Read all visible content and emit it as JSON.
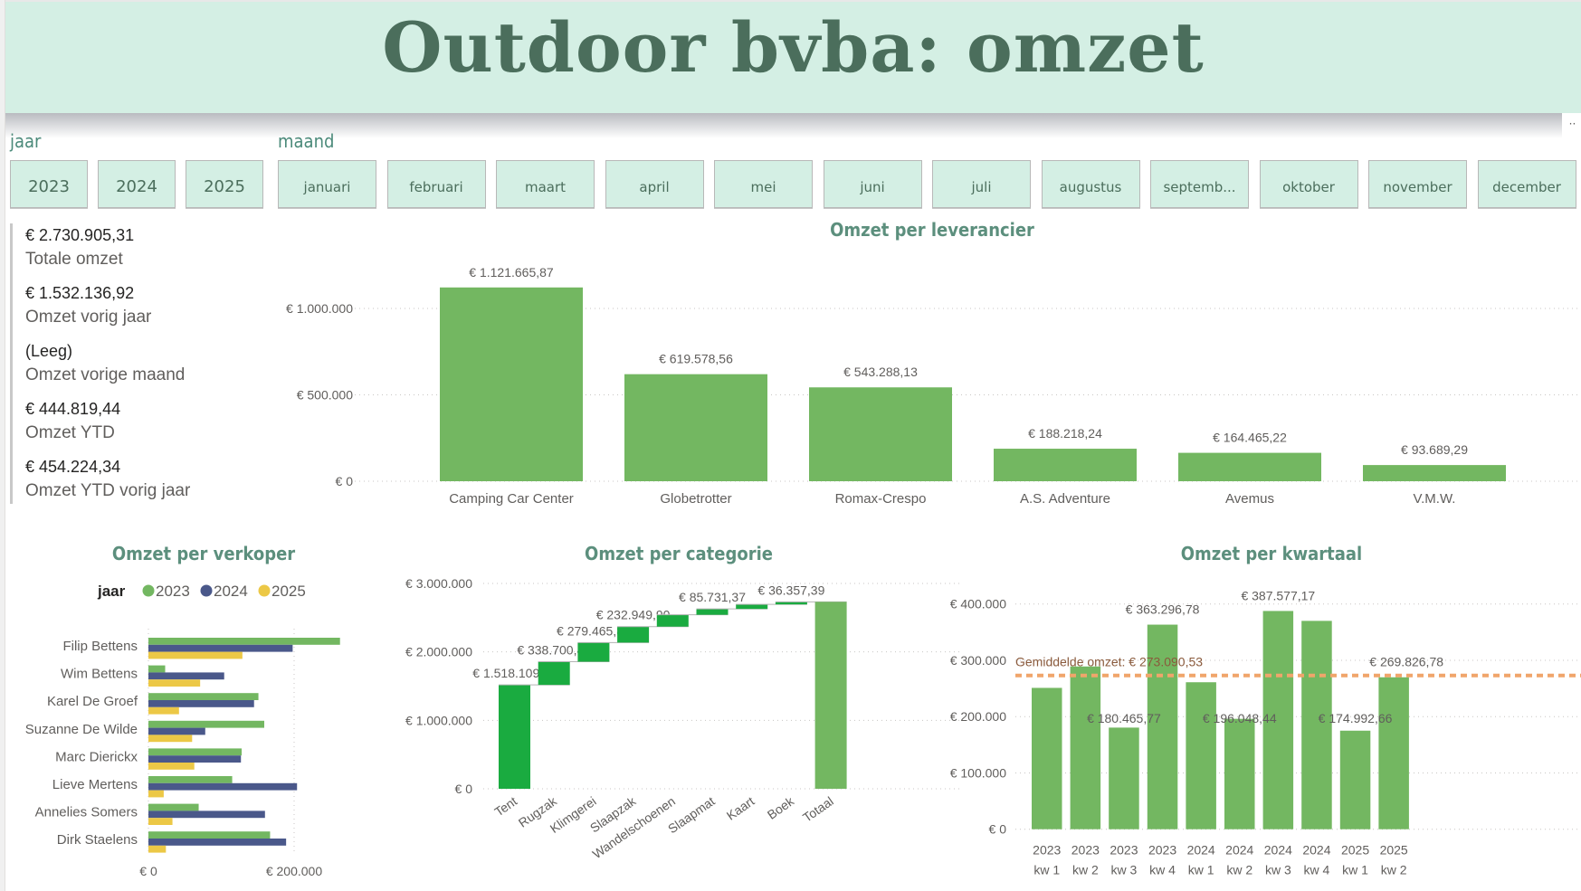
{
  "header": {
    "title": "Outdoor bvba: omzet",
    "more_options": "··"
  },
  "slicers": {
    "year": {
      "label": "jaar",
      "options": [
        "2023",
        "2024",
        "2025"
      ]
    },
    "month": {
      "label": "maand",
      "options": [
        "januari",
        "februari",
        "maart",
        "april",
        "mei",
        "juni",
        "juli",
        "augustus",
        "septemb...",
        "oktober",
        "november",
        "december"
      ]
    }
  },
  "kpis": [
    {
      "value": "€ 2.730.905,31",
      "label": "Totale omzet"
    },
    {
      "value": "€ 1.532.136,92",
      "label": "Omzet vorig jaar"
    },
    {
      "value": "(Leeg)",
      "label": "Omzet vorige maand"
    },
    {
      "value": "€ 444.819,44",
      "label": "Omzet YTD"
    },
    {
      "value": "€ 454.224,34",
      "label": "Omzet YTD vorig jaar"
    }
  ],
  "colors": {
    "bar_green": "#73b761",
    "waterfall_green": "#1aab40",
    "series_2024": "#4a588a",
    "series_2025": "#ecc846",
    "avg_line": "#f0a56b",
    "title_green": "#5c8f7d",
    "banner_bg": "#d4efe4"
  },
  "chart_data": [
    {
      "id": "leverancier",
      "type": "bar",
      "title": "Omzet per leverancier",
      "categories": [
        "Camping Car Center",
        "Globetrotter",
        "Romax-Crespo",
        "A.S. Adventure",
        "Avemus",
        "V.M.W."
      ],
      "values": [
        1121665.87,
        619578.56,
        543288.13,
        188218.24,
        164465.22,
        93689.29
      ],
      "data_labels": [
        "€ 1.121.665,87",
        "€ 619.578,56",
        "€ 543.288,13",
        "€ 188.218,24",
        "€ 164.465,22",
        "€ 93.689,29"
      ],
      "yticks": [
        "€ 0",
        "€ 500.000",
        "€ 1.000.000"
      ],
      "ylim": [
        0,
        1200000
      ],
      "grid": true
    },
    {
      "id": "verkoper",
      "type": "bar",
      "orientation": "horizontal",
      "title": "Omzet per verkoper",
      "legend_title": "jaar",
      "categories": [
        "Filip Bettens",
        "Wim Bettens",
        "Karel De Groef",
        "Suzanne De Wilde",
        "Marc Dierickx",
        "Lieve Mertens",
        "Annelies Somers",
        "Dirk Staelens"
      ],
      "series": [
        {
          "name": "2023",
          "color": "#73b761",
          "values": [
            263000,
            23000,
            151000,
            159000,
            128000,
            115000,
            69000,
            167000
          ]
        },
        {
          "name": "2024",
          "color": "#4a588a",
          "values": [
            198000,
            104000,
            145000,
            78000,
            127000,
            204000,
            160000,
            189000
          ]
        },
        {
          "name": "2025",
          "color": "#ecc846",
          "values": [
            129000,
            71000,
            42000,
            60000,
            63000,
            21000,
            33000,
            24000
          ]
        }
      ],
      "xticks": [
        "€ 0",
        "€ 200.000"
      ],
      "xlim": [
        0,
        270000
      ],
      "legend_position": "top"
    },
    {
      "id": "categorie",
      "type": "waterfall",
      "title": "Omzet per categorie",
      "categories": [
        "Tent",
        "Rugzak",
        "Klimgerei",
        "Slaapzak",
        "Wandelschoenen",
        "Slaapmat",
        "Kaart",
        "Boek",
        "Totaal"
      ],
      "values": [
        1518109.11,
        338700.46,
        279465.85,
        232949.9,
        173000,
        85731.37,
        66000,
        36357.39,
        2730905.31
      ],
      "data_labels": [
        "€ 1.518.109,11",
        "€ 338.700,46",
        "€ 279.465,85",
        "€ 232.949,90",
        "",
        "€ 85.731,37",
        "",
        "€ 36.357,39",
        ""
      ],
      "yticks": [
        "€ 0",
        "€ 1.000.000",
        "€ 2.000.000",
        "€ 3.000.000"
      ],
      "ylim": [
        0,
        3000000
      ]
    },
    {
      "id": "kwartaal",
      "type": "bar",
      "title": "Omzet per kwartaal",
      "categories": [
        "2023 kw 1",
        "2023 kw 2",
        "2023 kw 3",
        "2023 kw 4",
        "2024 kw 1",
        "2024 kw 2",
        "2024 kw 3",
        "2024 kw 4",
        "2025 kw 1",
        "2025 kw 2"
      ],
      "category_lines": [
        [
          "2023",
          "kw 1"
        ],
        [
          "2023",
          "kw 2"
        ],
        [
          "2023",
          "kw 3"
        ],
        [
          "2023",
          "kw 4"
        ],
        [
          "2024",
          "kw 1"
        ],
        [
          "2024",
          "kw 2"
        ],
        [
          "2024",
          "kw 3"
        ],
        [
          "2024",
          "kw 4"
        ],
        [
          "2025",
          "kw 1"
        ],
        [
          "2025",
          "kw 2"
        ]
      ],
      "values": [
        251000,
        289000,
        180465.77,
        363296.78,
        261000,
        196048.44,
        387577.17,
        370000,
        174992.66,
        269826.78
      ],
      "data_labels": [
        "",
        "",
        "€ 180.465,77",
        "€ 363.296,78",
        "",
        "€ 196.048,44",
        "€ 387.577,17",
        "",
        "€ 174.992,66",
        "€ 269.826,78"
      ],
      "average_line": {
        "value": 273090.53,
        "label": "Gemiddelde omzet: € 273.090,53"
      },
      "yticks": [
        "€ 0",
        "€ 100.000",
        "€ 200.000",
        "€ 300.000",
        "€ 400.000"
      ],
      "ylim": [
        0,
        420000
      ],
      "grid": true
    }
  ]
}
